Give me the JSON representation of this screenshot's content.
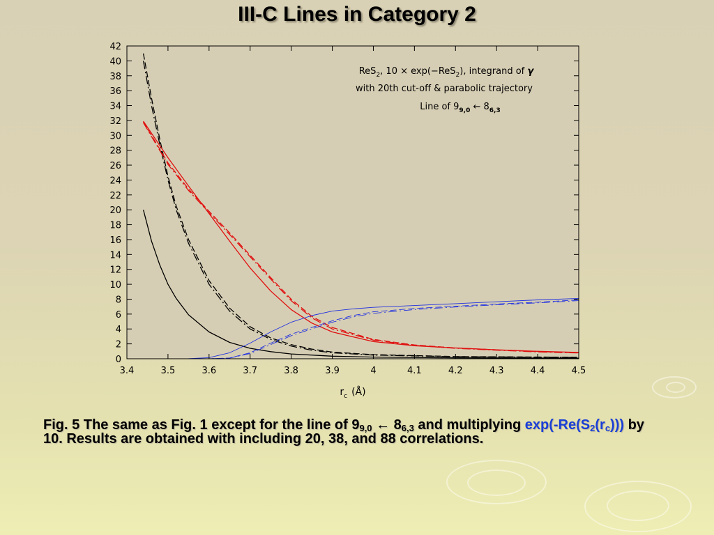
{
  "slide": {
    "title": "III-C Lines in Category 2",
    "caption": {
      "part1": "Fig. 5 The same as Fig. 1 except for the line of 9",
      "sub1": "9,0",
      "arrow": " ← 8",
      "sub2": "6,3",
      "part2": " and multiplying ",
      "blue1": "exp(-Re(S",
      "blue_sub1": "2",
      "blue2": "(r",
      "blue_sub2": "c",
      "blue3": ")))",
      "part3": " by 10. Results are obtained with including 20, 38, and 88 correlations."
    }
  },
  "chart_data": {
    "type": "line",
    "xlabel": "r",
    "xlabel_sub": "c",
    "xlabel_unit": "(Å)",
    "xlim": [
      3.4,
      4.5
    ],
    "ylim": [
      0,
      42
    ],
    "xticks": [
      "3.4",
      "3.5",
      "3.6",
      "3.7",
      "3.8",
      "3.9",
      "4",
      "4.1",
      "4.2",
      "4.3",
      "4.4",
      "4.5"
    ],
    "yticks": [
      "0",
      "2",
      "4",
      "6",
      "8",
      "10",
      "12",
      "14",
      "16",
      "18",
      "20",
      "22",
      "24",
      "26",
      "28",
      "30",
      "32",
      "34",
      "36",
      "38",
      "40",
      "42"
    ],
    "annotation": {
      "line1_a": "ReS",
      "line1_sub1": "2",
      "line1_b": ", 10 × exp(−ReS",
      "line1_sub2": "2",
      "line1_c": "), integrand of ",
      "line1_gamma": "γ",
      "line2": "with 20th cut-off & parabolic trajectory",
      "line3_a": "Line of 9",
      "line3_sub1": "9,0",
      "line3_b": " ← 8",
      "line3_sub2": "6,3"
    },
    "colors": {
      "black": "#000000",
      "red": "#e01010",
      "blue": "#2030e0"
    },
    "series": [
      {
        "color": "black",
        "style": "solid",
        "x": [
          3.44,
          3.46,
          3.48,
          3.5,
          3.52,
          3.55,
          3.6,
          3.65,
          3.7,
          3.75,
          3.8,
          3.9,
          4.0,
          4.2,
          4.5
        ],
        "y": [
          20,
          15.8,
          12.6,
          10.0,
          8.1,
          5.9,
          3.6,
          2.2,
          1.4,
          0.95,
          0.65,
          0.35,
          0.22,
          0.12,
          0.08
        ]
      },
      {
        "color": "black",
        "style": "longdash",
        "x": [
          3.44,
          3.46,
          3.48,
          3.5,
          3.52,
          3.55,
          3.6,
          3.65,
          3.7,
          3.75,
          3.8,
          3.85,
          3.9,
          4.0,
          4.2,
          4.5
        ],
        "y": [
          41,
          35,
          29.5,
          24.5,
          20.5,
          16.0,
          10.5,
          6.8,
          4.3,
          2.8,
          1.9,
          1.3,
          0.9,
          0.55,
          0.3,
          0.2
        ]
      },
      {
        "color": "black",
        "style": "dashdot",
        "x": [
          3.44,
          3.46,
          3.48,
          3.5,
          3.52,
          3.55,
          3.6,
          3.65,
          3.7,
          3.75,
          3.8,
          3.85,
          3.9,
          4.0,
          4.2,
          4.5
        ],
        "y": [
          40,
          34,
          28.8,
          24.0,
          20.0,
          15.5,
          10.0,
          6.4,
          4.0,
          2.6,
          1.7,
          1.15,
          0.8,
          0.5,
          0.28,
          0.18
        ]
      },
      {
        "color": "red",
        "style": "solid",
        "x": [
          3.44,
          3.5,
          3.55,
          3.6,
          3.65,
          3.7,
          3.75,
          3.8,
          3.85,
          3.9,
          4.0,
          4.1,
          4.2,
          4.3,
          4.4,
          4.5
        ],
        "y": [
          31.9,
          27.0,
          23.2,
          19.5,
          15.8,
          12.2,
          9.1,
          6.6,
          4.8,
          3.6,
          2.3,
          1.75,
          1.45,
          1.2,
          1.0,
          0.85
        ]
      },
      {
        "color": "red",
        "style": "longdash",
        "x": [
          3.44,
          3.5,
          3.55,
          3.6,
          3.65,
          3.7,
          3.75,
          3.8,
          3.85,
          3.9,
          4.0,
          4.1,
          4.2,
          4.3,
          4.4,
          4.5
        ],
        "y": [
          31.8,
          26.3,
          22.8,
          19.8,
          16.9,
          13.9,
          10.9,
          8.0,
          5.7,
          4.2,
          2.6,
          1.85,
          1.45,
          1.2,
          0.95,
          0.8
        ]
      },
      {
        "color": "red",
        "style": "dashdot",
        "x": [
          3.44,
          3.5,
          3.55,
          3.6,
          3.65,
          3.7,
          3.75,
          3.8,
          3.85,
          3.9,
          4.0,
          4.1,
          4.2,
          4.3,
          4.4,
          4.5
        ],
        "y": [
          31.7,
          26.1,
          22.6,
          19.6,
          16.7,
          13.7,
          10.7,
          7.8,
          5.5,
          4.0,
          2.5,
          1.8,
          1.4,
          1.15,
          0.92,
          0.78
        ]
      },
      {
        "color": "blue",
        "style": "solid",
        "x": [
          3.42,
          3.5,
          3.55,
          3.6,
          3.65,
          3.7,
          3.75,
          3.8,
          3.85,
          3.9,
          3.95,
          4.0,
          4.1,
          4.2,
          4.3,
          4.4,
          4.5
        ],
        "y": [
          0,
          0,
          0.02,
          0.15,
          0.8,
          2.1,
          3.6,
          4.9,
          5.8,
          6.4,
          6.7,
          6.9,
          7.15,
          7.4,
          7.65,
          7.9,
          8.1
        ]
      },
      {
        "color": "blue",
        "style": "longdash",
        "x": [
          3.42,
          3.6,
          3.65,
          3.7,
          3.75,
          3.8,
          3.85,
          3.9,
          3.95,
          4.0,
          4.1,
          4.2,
          4.3,
          4.4,
          4.5
        ],
        "y": [
          0,
          0,
          0.1,
          0.8,
          2.1,
          3.3,
          4.2,
          5.1,
          5.8,
          6.3,
          6.75,
          7.05,
          7.35,
          7.6,
          7.9
        ]
      },
      {
        "color": "blue",
        "style": "dashdot",
        "x": [
          3.42,
          3.6,
          3.65,
          3.7,
          3.75,
          3.8,
          3.85,
          3.9,
          3.95,
          4.0,
          4.1,
          4.2,
          4.3,
          4.4,
          4.5
        ],
        "y": [
          0,
          0,
          0.08,
          0.7,
          1.9,
          3.1,
          4.0,
          4.9,
          5.6,
          6.1,
          6.6,
          6.95,
          7.25,
          7.5,
          7.8
        ]
      }
    ]
  }
}
